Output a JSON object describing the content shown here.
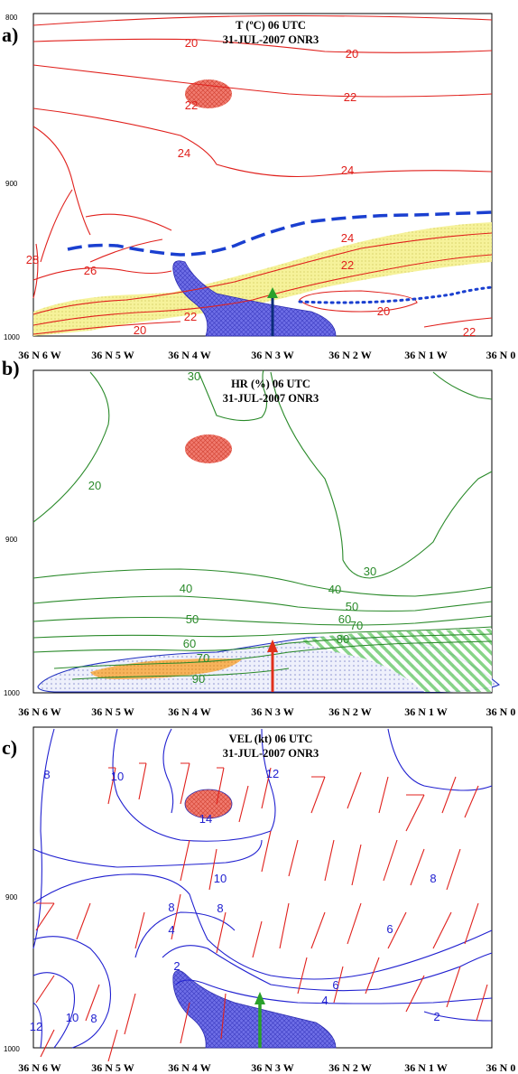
{
  "chart_data": [
    {
      "panel_label": "a)",
      "title": "T (ºC) 06 UTC",
      "subtitle": "31-JUL-2007 ONR3",
      "type": "contour",
      "variable": "temperature",
      "contour_color": "#e0201c",
      "x_ticks": [
        "36 N 6 W",
        "36 N 5 W",
        "36 N 4 W",
        "36 N 3 W",
        "36 N 2 W",
        "36 N 1 W",
        "36 N 0"
      ],
      "y_ticks": [
        "800",
        "900",
        "1000"
      ],
      "ylim": [
        1000,
        800
      ],
      "contour_labels": [
        "20",
        "20",
        "22",
        "22",
        "24",
        "24",
        "26",
        "28",
        "24",
        "22",
        "22",
        "20",
        "20",
        "22"
      ]
    },
    {
      "panel_label": "b)",
      "title": "HR (%) 06 UTC",
      "subtitle": "31-JUL-2007 ONR3",
      "type": "contour",
      "variable": "relative_humidity",
      "contour_color": "#2a8a2a",
      "x_ticks": [
        "36 N 6 W",
        "36 N 5 W",
        "36 N 4 W",
        "36 N 3 W",
        "36 N 2 W",
        "36 N 1 W",
        "36 N 0"
      ],
      "y_ticks": [
        "900",
        "1000"
      ],
      "ylim": [
        1000,
        800
      ],
      "contour_labels": [
        "30",
        "20",
        "30",
        "40",
        "40",
        "50",
        "50",
        "60",
        "60",
        "70",
        "70",
        "80",
        "90"
      ]
    },
    {
      "panel_label": "c)",
      "title": "VEL (kt) 06 UTC",
      "subtitle": "31-JUL-2007 ONR3",
      "type": "contour",
      "variable": "wind_speed",
      "contour_color": "#2020d0",
      "barb_color": "#e0201c",
      "x_ticks": [
        "36 N 6 W",
        "36 N 5 W",
        "36 N 4 W",
        "36 N 3 W",
        "36 N 2 W",
        "36 N 1 W",
        "36 N 0"
      ],
      "y_ticks": [
        "900",
        "1000"
      ],
      "ylim": [
        1000,
        800
      ],
      "contour_labels": [
        "8",
        "10",
        "12",
        "14",
        "10",
        "8",
        "8",
        "6",
        "8",
        "4",
        "6",
        "4",
        "2",
        "2",
        "12",
        "10",
        "8"
      ]
    }
  ]
}
